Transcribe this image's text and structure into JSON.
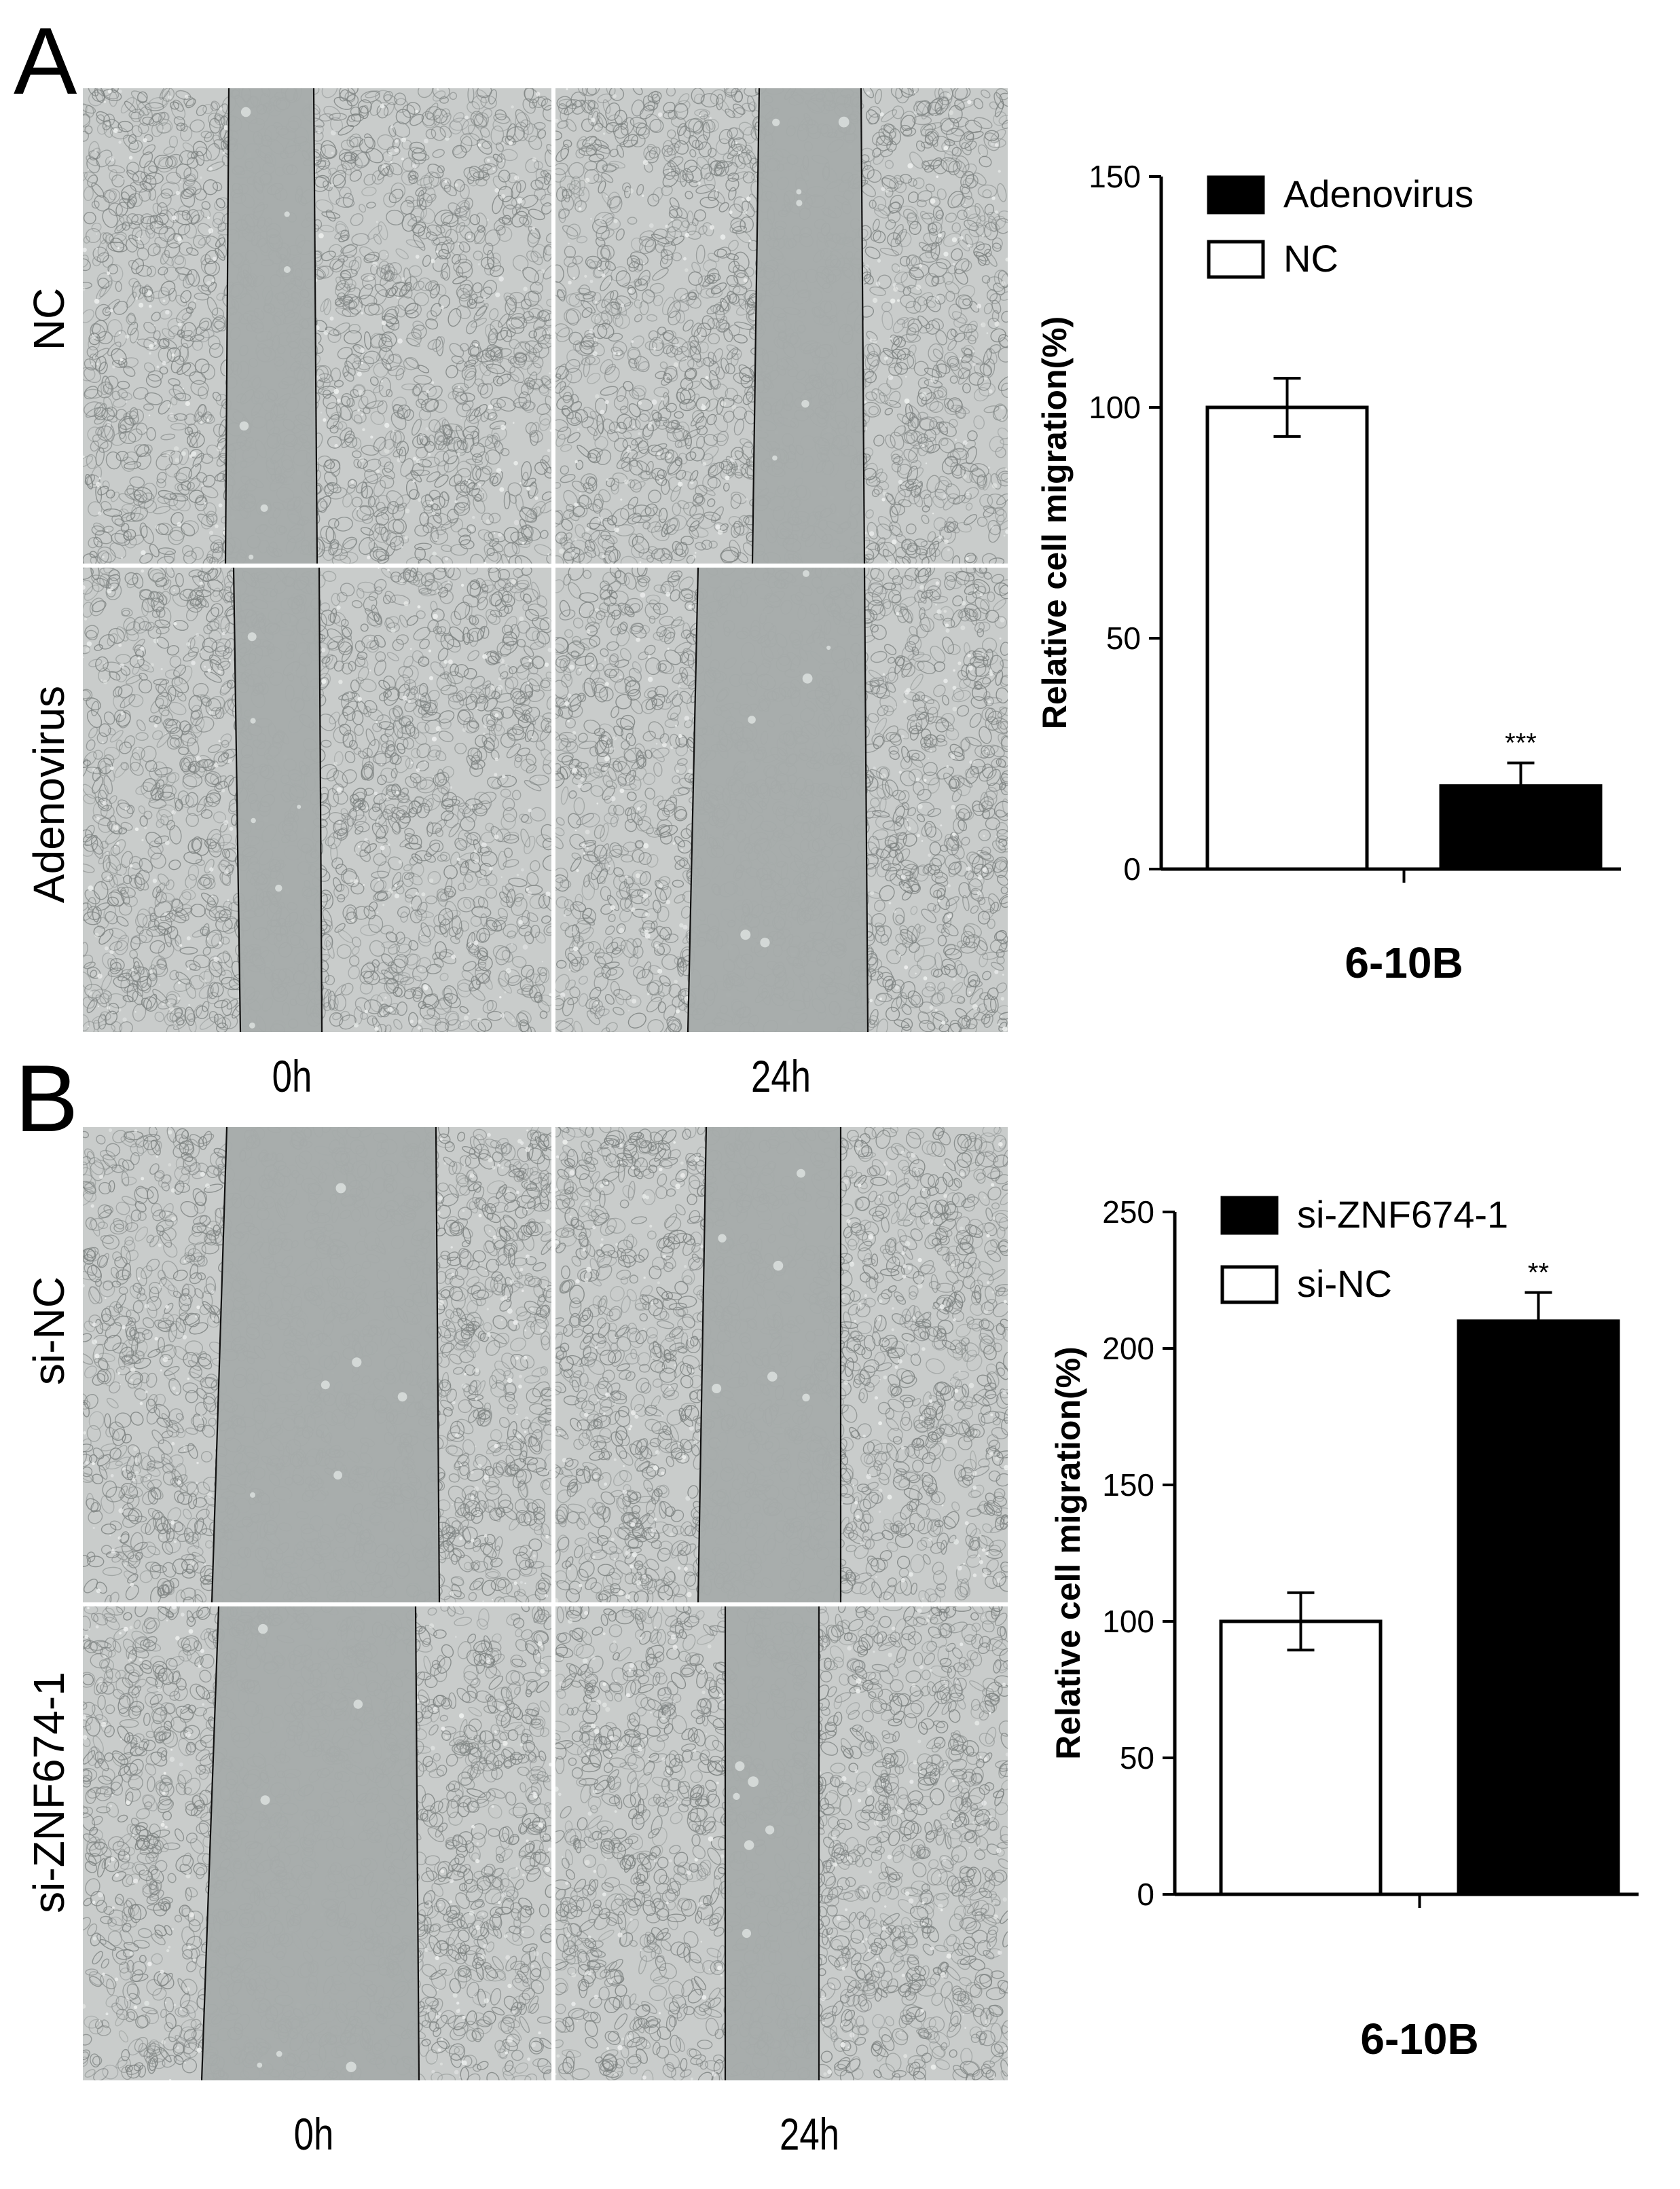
{
  "panel_a": {
    "letter": "A",
    "row_labels": [
      "NC",
      "Adenovirus"
    ],
    "time_labels": [
      "0h",
      "24h"
    ]
  },
  "panel_b": {
    "letter": "B",
    "row_labels": [
      "si-NC",
      "si-ZNF674-1"
    ],
    "time_labels": [
      "0h",
      "24h"
    ]
  },
  "colors": {
    "cell_layer": "#c9cccb",
    "cell_outline": "#7c8180",
    "scratch_gap": "#a6abaa",
    "bar_control": "#ffffff",
    "bar_treatment": "#000000"
  },
  "chart_data": [
    {
      "type": "bar",
      "title": "",
      "xlabel": "6-10B",
      "ylabel": "Relative cell migration(%)",
      "ylim": [
        0,
        150
      ],
      "yticks": [
        "0",
        "50",
        "100",
        "150"
      ],
      "legend": [
        "Adenovirus",
        "NC"
      ],
      "legend_placement": "top-left",
      "series": [
        {
          "name": "NC",
          "value": 100,
          "error": 6.3,
          "annotation": ""
        },
        {
          "name": "Adenovirus",
          "value": 18,
          "error": 5,
          "annotation": "***"
        }
      ]
    },
    {
      "type": "bar",
      "title": "",
      "xlabel": "6-10B",
      "ylabel": "Relative cell migration(%)",
      "ylim": [
        0,
        250
      ],
      "yticks": [
        "0",
        "50",
        "100",
        "150",
        "200",
        "250"
      ],
      "legend": [
        "si-ZNF674-1",
        "si-NC"
      ],
      "legend_placement": "top-left",
      "series": [
        {
          "name": "si-NC",
          "value": 100,
          "error": 10.5,
          "annotation": ""
        },
        {
          "name": "si-ZNF674-1",
          "value": 210,
          "error": 10.5,
          "annotation": "**"
        }
      ]
    }
  ]
}
